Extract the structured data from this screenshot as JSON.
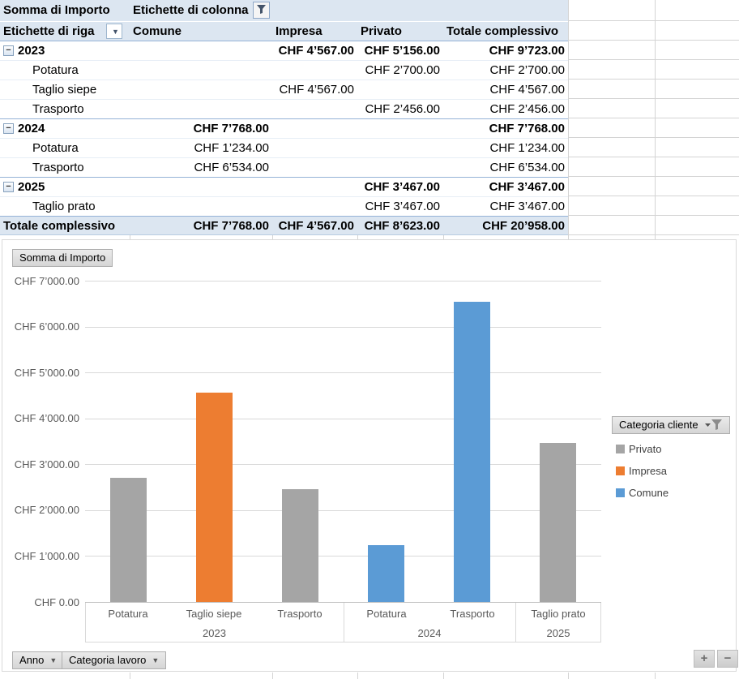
{
  "colors": {
    "header_bg": "#DCE6F1",
    "header_border": "#95B3D7",
    "sheet_gridline": "#D4D4D4",
    "chart_gridline": "#D9D9D9",
    "axis_text": "#595959"
  },
  "pivot_table": {
    "value_field": "Somma di Importo",
    "column_header": "Etichette di colonna",
    "row_header": "Etichette di riga",
    "columns": [
      "Comune",
      "Impresa",
      "Privato",
      "Totale complessivo"
    ],
    "collapse_glyph": "−",
    "rows": [
      {
        "label": "2023",
        "level": "year",
        "values": [
          "",
          "CHF 4’567.00",
          "CHF 5’156.00",
          "CHF 9’723.00"
        ]
      },
      {
        "label": "Potatura",
        "level": "item",
        "values": [
          "",
          "",
          "CHF 2’700.00",
          "CHF 2’700.00"
        ]
      },
      {
        "label": "Taglio siepe",
        "level": "item",
        "values": [
          "",
          "CHF 4’567.00",
          "",
          "CHF 4’567.00"
        ]
      },
      {
        "label": "Trasporto",
        "level": "item",
        "values": [
          "",
          "",
          "CHF 2’456.00",
          "CHF 2’456.00"
        ]
      },
      {
        "label": "2024",
        "level": "year",
        "values": [
          "CHF 7’768.00",
          "",
          "",
          "CHF 7’768.00"
        ]
      },
      {
        "label": "Potatura",
        "level": "item",
        "values": [
          "CHF 1’234.00",
          "",
          "",
          "CHF 1’234.00"
        ]
      },
      {
        "label": "Trasporto",
        "level": "item",
        "values": [
          "CHF 6’534.00",
          "",
          "",
          "CHF 6’534.00"
        ]
      },
      {
        "label": "2025",
        "level": "year",
        "values": [
          "",
          "",
          "CHF 3’467.00",
          "CHF 3’467.00"
        ]
      },
      {
        "label": "Taglio prato",
        "level": "item",
        "values": [
          "",
          "",
          "CHF 3’467.00",
          "CHF 3’467.00"
        ]
      },
      {
        "label": "Totale complessivo",
        "level": "total",
        "values": [
          "CHF 7’768.00",
          "CHF 4’567.00",
          "CHF 8’623.00",
          "CHF 20’958.00"
        ]
      }
    ]
  },
  "chart": {
    "value_button": "Somma di Importo",
    "legend_button": "Categoria cliente",
    "axis_buttons": [
      "Anno",
      "Categoria lavoro"
    ],
    "zoom_in": "+",
    "zoom_out": "−"
  },
  "chart_data": {
    "type": "bar",
    "ylim": [
      0,
      7000
    ],
    "grid": "horizontal",
    "legend_position": "right",
    "y_ticks": [
      "CHF 7’000.00",
      "CHF 6’000.00",
      "CHF 5’000.00",
      "CHF 4’000.00",
      "CHF 3’000.00",
      "CHF 2’000.00",
      "CHF 1’000.00",
      "CHF 0.00"
    ],
    "categories": [
      "Potatura",
      "Taglio siepe",
      "Trasporto",
      "Potatura",
      "Trasporto",
      "Taglio prato"
    ],
    "groups": [
      {
        "label": "2023",
        "count": 3
      },
      {
        "label": "2024",
        "count": 2
      },
      {
        "label": "2025",
        "count": 1
      }
    ],
    "points": [
      {
        "category": "Potatura",
        "group": "2023",
        "series": "Privato",
        "value": 2700
      },
      {
        "category": "Taglio siepe",
        "group": "2023",
        "series": "Impresa",
        "value": 4567
      },
      {
        "category": "Trasporto",
        "group": "2023",
        "series": "Privato",
        "value": 2456
      },
      {
        "category": "Potatura",
        "group": "2024",
        "series": "Comune",
        "value": 1234
      },
      {
        "category": "Trasporto",
        "group": "2024",
        "series": "Comune",
        "value": 6534
      },
      {
        "category": "Taglio prato",
        "group": "2025",
        "series": "Privato",
        "value": 3467
      }
    ],
    "legend": [
      {
        "label": "Privato",
        "color": "#A5A5A5"
      },
      {
        "label": "Impresa",
        "color": "#ED7D31"
      },
      {
        "label": "Comune",
        "color": "#5B9BD5"
      }
    ]
  }
}
